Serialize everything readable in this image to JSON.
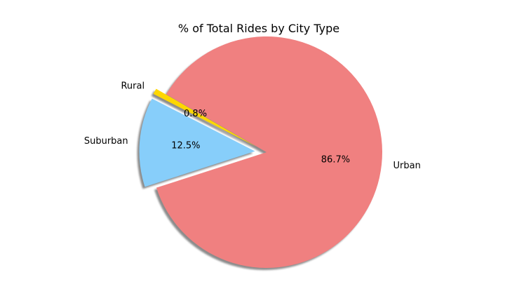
{
  "chart_data": {
    "type": "pie",
    "title": "% of Total Rides by City Type",
    "slices": [
      {
        "label": "Rural",
        "value": 0.8,
        "pct_label": "0.8%",
        "color": "#ffd700",
        "explode": true
      },
      {
        "label": "Suburban",
        "value": 12.5,
        "pct_label": "12.5%",
        "color": "#87cefa",
        "explode": true
      },
      {
        "label": "Urban",
        "value": 86.7,
        "pct_label": "86.7%",
        "color": "#f08080",
        "explode": false
      }
    ],
    "start_angle_deg": 150,
    "direction": "counterclockwise",
    "shadow": true,
    "legend": "none"
  }
}
